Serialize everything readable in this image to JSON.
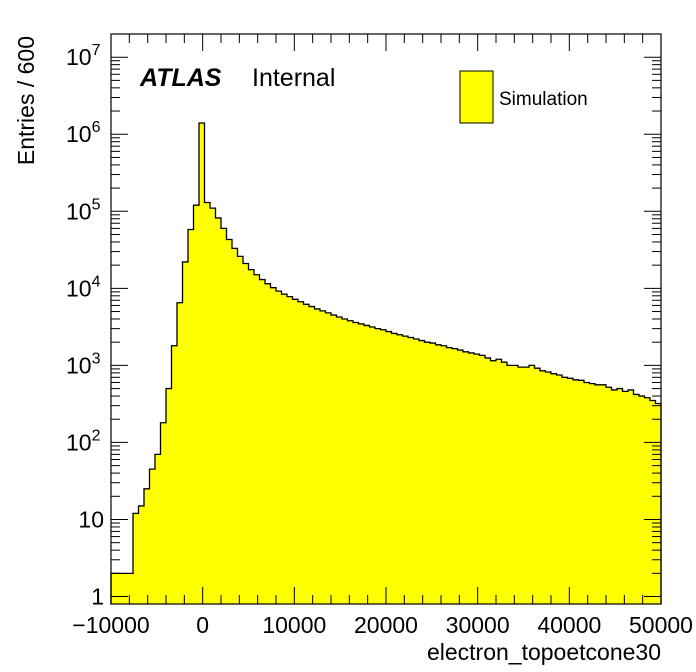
{
  "chart_data": {
    "type": "bar",
    "subtype": "histogram",
    "xlabel": "electron_topoetcone30",
    "ylabel": "Entries / 600",
    "y_scale": "log",
    "xlim": [
      -10000,
      50000
    ],
    "ylim": [
      0.8,
      20000000
    ],
    "bin_width": 600,
    "x_ticks": [
      {
        "value": -10000,
        "label": "−10000"
      },
      {
        "value": 0,
        "label": "0"
      },
      {
        "value": 10000,
        "label": "10000"
      },
      {
        "value": 20000,
        "label": "20000"
      },
      {
        "value": 30000,
        "label": "30000"
      },
      {
        "value": 40000,
        "label": "40000"
      },
      {
        "value": 50000,
        "label": "50000"
      }
    ],
    "y_ticks": [
      {
        "value": 1,
        "base": "1",
        "exp": ""
      },
      {
        "value": 10,
        "base": "10",
        "exp": ""
      },
      {
        "value": 100,
        "base": "10",
        "exp": "2"
      },
      {
        "value": 1000,
        "base": "10",
        "exp": "3"
      },
      {
        "value": 10000,
        "base": "10",
        "exp": "4"
      },
      {
        "value": 100000,
        "base": "10",
        "exp": "5"
      },
      {
        "value": 1000000,
        "base": "10",
        "exp": "6"
      },
      {
        "value": 10000000,
        "base": "10",
        "exp": "7"
      }
    ],
    "atlas_label": "ATLAS",
    "status_label": "Internal",
    "grid": false,
    "legend": "top-right",
    "series": [
      {
        "name": "Simulation",
        "color": "#ffff00",
        "edge_color": "#000000",
        "x_bin_lows": [
          -10000,
          -9400,
          -8800,
          -8200,
          -7600,
          -7000,
          -6400,
          -5800,
          -5200,
          -4600,
          -4000,
          -3400,
          -2800,
          -2200,
          -1600,
          -1000,
          -400,
          200,
          800,
          1400,
          2000,
          2600,
          3200,
          3800,
          4400,
          5000,
          5600,
          6200,
          6800,
          7400,
          8000,
          8600,
          9200,
          9800,
          10400,
          11000,
          11600,
          12200,
          12800,
          13400,
          14000,
          14600,
          15200,
          15800,
          16400,
          17000,
          17600,
          18200,
          18800,
          19400,
          20000,
          20600,
          21200,
          21800,
          22400,
          23000,
          23600,
          24200,
          24800,
          25400,
          26000,
          26600,
          27200,
          27800,
          28400,
          29000,
          29600,
          30200,
          30800,
          31400,
          32000,
          32600,
          33200,
          33800,
          34400,
          35000,
          35600,
          36200,
          36800,
          37400,
          38000,
          38600,
          39200,
          39800,
          40400,
          41000,
          41600,
          42200,
          42800,
          43400,
          44000,
          44600,
          45200,
          45800,
          46400,
          47000,
          47600,
          48200,
          48800,
          49400
        ],
        "values": [
          2,
          2,
          2,
          2,
          12,
          15,
          25,
          45,
          70,
          180,
          500,
          1800,
          6500,
          22000,
          58000,
          120000,
          1400000,
          130000,
          110000,
          82000,
          60000,
          43000,
          33000,
          26000,
          21000,
          17500,
          15000,
          13000,
          11500,
          10200,
          9200,
          8400,
          7800,
          7200,
          6700,
          6200,
          5800,
          5400,
          5100,
          4800,
          4500,
          4250,
          4000,
          3800,
          3600,
          3450,
          3300,
          3150,
          3000,
          2900,
          2750,
          2600,
          2500,
          2400,
          2300,
          2200,
          2100,
          2000,
          1950,
          1850,
          1800,
          1700,
          1650,
          1580,
          1500,
          1450,
          1400,
          1350,
          1250,
          1150,
          1200,
          1100,
          1000,
          1000,
          950,
          950,
          1000,
          920,
          850,
          820,
          780,
          750,
          700,
          680,
          650,
          640,
          600,
          580,
          560,
          560,
          520,
          480,
          500,
          460,
          480,
          420,
          400,
          380,
          350,
          320
        ]
      }
    ]
  }
}
